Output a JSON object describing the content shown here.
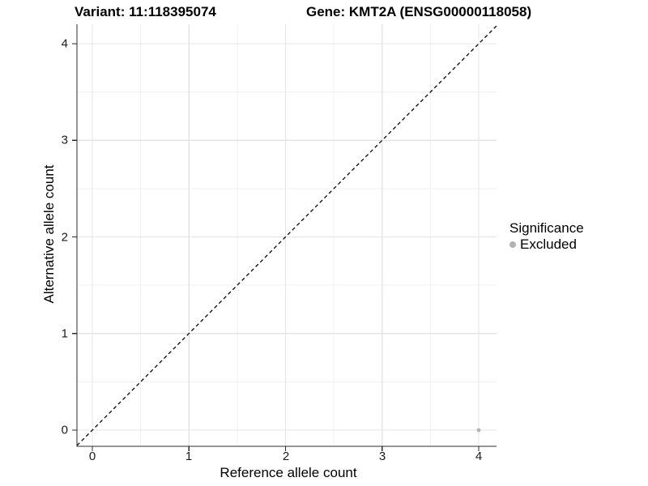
{
  "chart_data": {
    "type": "scatter",
    "title_left": "Variant: 11:118395074",
    "title_right": "Gene: KMT2A (ENSG00000118058)",
    "xlabel": "Reference allele count",
    "ylabel": "Alternative allele count",
    "xlim": [
      -0.16,
      4.19
    ],
    "ylim": [
      -0.18,
      4.19
    ],
    "x_ticks": [
      0,
      1,
      2,
      3,
      4
    ],
    "y_ticks": [
      0,
      1,
      2,
      3,
      4
    ],
    "x_minor_ticks": [
      0.5,
      1.5,
      2.5,
      3.5
    ],
    "y_minor_ticks": [
      0.5,
      1.5,
      2.5,
      3.5
    ],
    "grid": "major+minor",
    "identity_line": {
      "equation": "y = x",
      "style": "dashed",
      "color": "#000000"
    },
    "legend": {
      "title": "Significance",
      "position": "right",
      "items": [
        {
          "label": "Excluded",
          "color": "#b3b3b3"
        }
      ]
    },
    "series": [
      {
        "name": "Excluded",
        "color": "#b3b3b3",
        "marker": "circle",
        "points": [
          {
            "x": 4,
            "y": 0
          }
        ]
      }
    ]
  },
  "style": {
    "background": "#ffffff",
    "grid_major": "#e4e4e4",
    "grid_minor": "#f0f0f0",
    "axis_line": "#2e2e2e",
    "tick_mark": "#2e2e2e",
    "identity_line_color": "#000000",
    "title_color": "#000000",
    "tick_label_color": "#1a1a1a"
  }
}
